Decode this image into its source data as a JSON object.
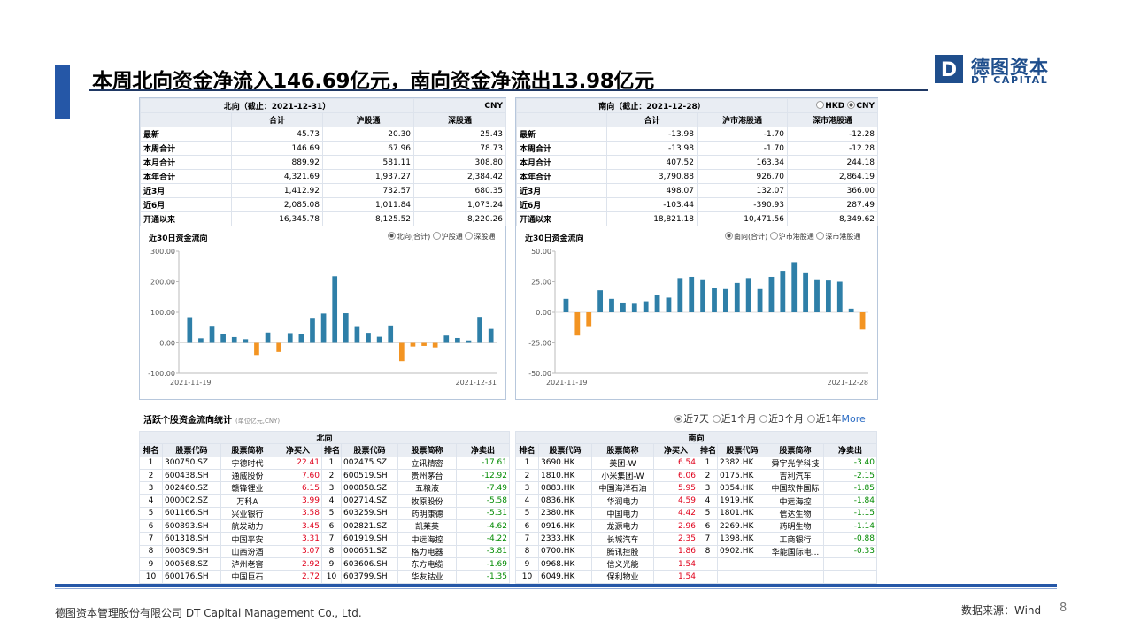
{
  "title": "本周北向资金净流入146.69亿元，南向资金净流出13.98亿元",
  "logo": {
    "cn": "德图资本",
    "en": "DT CAPITAL",
    "letter": "D"
  },
  "north_table": {
    "caption": "北向（截止：2021-12-31）",
    "currency": "CNY",
    "headers": [
      "合计",
      "沪股通",
      "深股通"
    ],
    "rows": [
      {
        "label": "最新",
        "v": [
          "45.73",
          "20.30",
          "25.43"
        ]
      },
      {
        "label": "本周合计",
        "v": [
          "146.69",
          "67.96",
          "78.73"
        ]
      },
      {
        "label": "本月合计",
        "v": [
          "889.92",
          "581.11",
          "308.80"
        ]
      },
      {
        "label": "本年合计",
        "v": [
          "4,321.69",
          "1,937.27",
          "2,384.42"
        ]
      },
      {
        "label": "近3月",
        "v": [
          "1,412.92",
          "732.57",
          "680.35"
        ]
      },
      {
        "label": "近6月",
        "v": [
          "2,085.08",
          "1,011.84",
          "1,073.24"
        ]
      },
      {
        "label": "开通以来",
        "v": [
          "16,345.78",
          "8,125.52",
          "8,220.26"
        ]
      }
    ]
  },
  "south_table": {
    "caption": "南向（截止：2021-12-28）",
    "currency_hkd": "HKD",
    "currency_cny": "CNY",
    "headers": [
      "合计",
      "沪市港股通",
      "深市港股通"
    ],
    "rows": [
      {
        "label": "最新",
        "v": [
          "-13.98",
          "-1.70",
          "-12.28"
        ]
      },
      {
        "label": "本周合计",
        "v": [
          "-13.98",
          "-1.70",
          "-12.28"
        ]
      },
      {
        "label": "本月合计",
        "v": [
          "407.52",
          "163.34",
          "244.18"
        ]
      },
      {
        "label": "本年合计",
        "v": [
          "3,790.88",
          "926.70",
          "2,864.19"
        ]
      },
      {
        "label": "近3月",
        "v": [
          "498.07",
          "132.07",
          "366.00"
        ]
      },
      {
        "label": "近6月",
        "v": [
          "-103.44",
          "-390.93",
          "287.49"
        ]
      },
      {
        "label": "开通以来",
        "v": [
          "18,821.18",
          "10,471.56",
          "8,349.62"
        ]
      }
    ]
  },
  "chart_data": [
    {
      "type": "bar",
      "title": "近30日资金流向",
      "options": [
        "北向(合计)",
        "沪股通",
        "深股通"
      ],
      "selected": "北向(合计)",
      "y_ticks": [
        "300.00",
        "200.00",
        "100.00",
        "0.00",
        "-100.00"
      ],
      "ylim": [
        -100,
        300
      ],
      "x_start": "2021-11-19",
      "x_end": "2021-12-31",
      "values": [
        84,
        15,
        53,
        30,
        19,
        12,
        -40,
        34,
        -30,
        32,
        30,
        82,
        96,
        218,
        97,
        52,
        33,
        20,
        57,
        -60,
        -12,
        -10,
        -15,
        24,
        16,
        8,
        85,
        46
      ],
      "pos_color": "#2e7fa8",
      "neg_color": "#f39422"
    },
    {
      "type": "bar",
      "title": "近30日资金流向",
      "options": [
        "南向(合计)",
        "沪市港股通",
        "深市港股通"
      ],
      "selected": "南向(合计)",
      "y_ticks": [
        "50.00",
        "25.00",
        "0.00",
        "-25.00",
        "-50.00"
      ],
      "ylim": [
        -50,
        50
      ],
      "x_start": "2021-11-19",
      "x_end": "2021-12-28",
      "values": [
        11,
        -19,
        -12,
        18,
        11,
        8,
        7,
        9,
        14,
        12,
        28,
        29,
        27,
        20,
        19,
        24,
        28,
        19,
        29,
        34,
        41,
        32,
        27,
        26,
        25,
        3,
        -14
      ],
      "pos_color": "#2e7fa8",
      "neg_color": "#f39422"
    }
  ],
  "active": {
    "title": "活跃个股资金流向统计",
    "unit": "(单位亿元,CNY)",
    "periods": [
      "近7天",
      "近1个月",
      "近3个月",
      "近1年"
    ],
    "selected_period": "近7天",
    "more": "More",
    "north": {
      "caption": "北向",
      "headers": [
        "排名",
        "股票代码",
        "股票简称",
        "净买入",
        "排名",
        "股票代码",
        "股票简称",
        "净卖出"
      ],
      "rows": [
        [
          "1",
          "300750.SZ",
          "宁德时代",
          "22.41",
          "1",
          "002475.SZ",
          "立讯精密",
          "-17.61"
        ],
        [
          "2",
          "600438.SH",
          "通威股份",
          "7.60",
          "2",
          "600519.SH",
          "贵州茅台",
          "-12.92"
        ],
        [
          "3",
          "002460.SZ",
          "赣锋锂业",
          "6.15",
          "3",
          "000858.SZ",
          "五粮液",
          "-7.49"
        ],
        [
          "4",
          "000002.SZ",
          "万科A",
          "3.99",
          "4",
          "002714.SZ",
          "牧原股份",
          "-5.58"
        ],
        [
          "5",
          "601166.SH",
          "兴业银行",
          "3.58",
          "5",
          "603259.SH",
          "药明康德",
          "-5.31"
        ],
        [
          "6",
          "600893.SH",
          "航发动力",
          "3.45",
          "6",
          "002821.SZ",
          "凯莱英",
          "-4.62"
        ],
        [
          "7",
          "601318.SH",
          "中国平安",
          "3.31",
          "7",
          "601919.SH",
          "中远海控",
          "-4.22"
        ],
        [
          "8",
          "600809.SH",
          "山西汾酒",
          "3.07",
          "8",
          "000651.SZ",
          "格力电器",
          "-3.81"
        ],
        [
          "9",
          "000568.SZ",
          "泸州老窖",
          "2.92",
          "9",
          "603606.SH",
          "东方电缆",
          "-1.69"
        ],
        [
          "10",
          "600176.SH",
          "中国巨石",
          "2.72",
          "10",
          "603799.SH",
          "华友钴业",
          "-1.35"
        ]
      ]
    },
    "south": {
      "caption": "南向",
      "headers": [
        "排名",
        "股票代码",
        "股票简称",
        "净买入",
        "排名",
        "股票代码",
        "股票简称",
        "净卖出"
      ],
      "rows": [
        [
          "1",
          "3690.HK",
          "美团-W",
          "6.54",
          "1",
          "2382.HK",
          "舜宇光学科技",
          "-3.40"
        ],
        [
          "2",
          "1810.HK",
          "小米集团-W",
          "6.06",
          "2",
          "0175.HK",
          "吉利汽车",
          "-2.15"
        ],
        [
          "3",
          "0883.HK",
          "中国海洋石油",
          "5.95",
          "3",
          "0354.HK",
          "中国软件国际",
          "-1.85"
        ],
        [
          "4",
          "0836.HK",
          "华润电力",
          "4.59",
          "4",
          "1919.HK",
          "中远海控",
          "-1.84"
        ],
        [
          "5",
          "2380.HK",
          "中国电力",
          "4.42",
          "5",
          "1801.HK",
          "信达生物",
          "-1.15"
        ],
        [
          "6",
          "0916.HK",
          "龙源电力",
          "2.96",
          "6",
          "2269.HK",
          "药明生物",
          "-1.14"
        ],
        [
          "7",
          "2333.HK",
          "长城汽车",
          "2.35",
          "7",
          "1398.HK",
          "工商银行",
          "-0.88"
        ],
        [
          "8",
          "0700.HK",
          "腾讯控股",
          "1.86",
          "8",
          "0902.HK",
          "华能国际电...",
          "-0.33"
        ],
        [
          "9",
          "0968.HK",
          "信义光能",
          "1.54",
          "",
          "",
          "",
          ""
        ],
        [
          "10",
          "6049.HK",
          "保利物业",
          "1.54",
          "",
          "",
          "",
          ""
        ]
      ]
    }
  },
  "footer": {
    "company": "德图资本管理股份有限公司  DT Capital Management Co., Ltd.",
    "source": "数据来源：Wind",
    "page": "8"
  }
}
